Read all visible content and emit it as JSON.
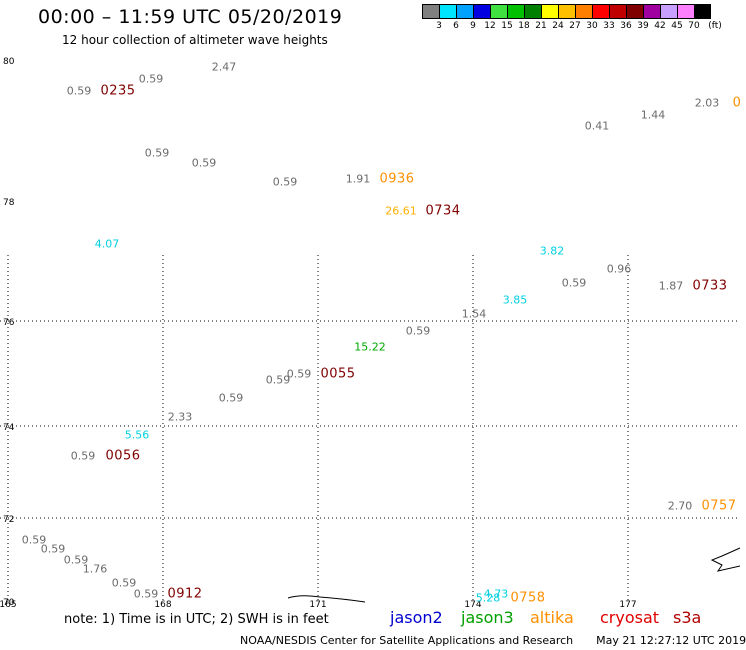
{
  "header": {
    "title": "00:00 – 11:59 UTC 05/20/2019",
    "subtitle": "12 hour collection of altimeter wave heights"
  },
  "legend": {
    "unit": "(ft)",
    "items": [
      {
        "label": "3",
        "color": "#808080"
      },
      {
        "label": "6",
        "color": "#00e5ff"
      },
      {
        "label": "9",
        "color": "#00a2ff"
      },
      {
        "label": "12",
        "color": "#0000e0"
      },
      {
        "label": "15",
        "color": "#40e040"
      },
      {
        "label": "18",
        "color": "#00c000"
      },
      {
        "label": "21",
        "color": "#008000"
      },
      {
        "label": "24",
        "color": "#ffff00"
      },
      {
        "label": "27",
        "color": "#ffc000"
      },
      {
        "label": "30",
        "color": "#ff8000"
      },
      {
        "label": "33",
        "color": "#ff0000"
      },
      {
        "label": "36",
        "color": "#c00000"
      },
      {
        "label": "39",
        "color": "#800000"
      },
      {
        "label": "42",
        "color": "#a000a0"
      },
      {
        "label": "45",
        "color": "#c8a0ff"
      },
      {
        "label": "70",
        "color": "#ff80ff"
      },
      {
        "label": "",
        "color": "#000000"
      }
    ]
  },
  "axes": {
    "lat_labels": [
      "80",
      "78",
      "76",
      "74",
      "72",
      "70"
    ],
    "lon_labels": [
      "165",
      "168",
      "171",
      "174",
      "177"
    ]
  },
  "observations": [
    {
      "value": "0.59",
      "color": "#6b6b6b"
    },
    {
      "value": "0.59",
      "color": "#6b6b6b"
    },
    {
      "value": "2.47",
      "color": "#6b6b6b"
    },
    {
      "value": "0.59",
      "color": "#6b6b6b"
    },
    {
      "value": "0.59",
      "color": "#6b6b6b"
    },
    {
      "value": "0.59",
      "color": "#6b6b6b"
    },
    {
      "value": "1.91",
      "color": "#6b6b6b"
    },
    {
      "value": "26.61",
      "color": "#ffb000"
    },
    {
      "value": "2.03",
      "color": "#6b6b6b"
    },
    {
      "value": "1.44",
      "color": "#6b6b6b"
    },
    {
      "value": "0.41",
      "color": "#6b6b6b"
    },
    {
      "value": "4.07",
      "color": "#00d0e0"
    },
    {
      "value": "3.82",
      "color": "#00d0e0"
    },
    {
      "value": "0.96",
      "color": "#6b6b6b"
    },
    {
      "value": "0.59",
      "color": "#6b6b6b"
    },
    {
      "value": "1.87",
      "color": "#6b6b6b"
    },
    {
      "value": "3.85",
      "color": "#00d0e0"
    },
    {
      "value": "1.54",
      "color": "#6b6b6b"
    },
    {
      "value": "0.59",
      "color": "#6b6b6b"
    },
    {
      "value": "15.22",
      "color": "#00a800"
    },
    {
      "value": "0.59",
      "color": "#6b6b6b"
    },
    {
      "value": "0.59",
      "color": "#6b6b6b"
    },
    {
      "value": "0.59",
      "color": "#6b6b6b"
    },
    {
      "value": "2.33",
      "color": "#6b6b6b"
    },
    {
      "value": "5.56",
      "color": "#00d0e0"
    },
    {
      "value": "0.59",
      "color": "#6b6b6b"
    },
    {
      "value": "2.70",
      "color": "#6b6b6b"
    },
    {
      "value": "0.59",
      "color": "#6b6b6b"
    },
    {
      "value": "0.59",
      "color": "#6b6b6b"
    },
    {
      "value": "0.59",
      "color": "#6b6b6b"
    },
    {
      "value": "1.76",
      "color": "#6b6b6b"
    },
    {
      "value": "0.59",
      "color": "#6b6b6b"
    },
    {
      "value": "0.59",
      "color": "#6b6b6b"
    },
    {
      "value": "5.28",
      "color": "#00d0e0"
    },
    {
      "value": "4.73",
      "color": "#00d0e0"
    }
  ],
  "pass_times": [
    {
      "time": "0235",
      "color": "#800000"
    },
    {
      "time": "0936",
      "color": "#ff9000"
    },
    {
      "time": "0734",
      "color": "#800000"
    },
    {
      "time": "0",
      "color": "#ff9000"
    },
    {
      "time": "0733",
      "color": "#800000"
    },
    {
      "time": "0055",
      "color": "#800000"
    },
    {
      "time": "0056",
      "color": "#800000"
    },
    {
      "time": "0757",
      "color": "#ff9000"
    },
    {
      "time": "0912",
      "color": "#800000"
    },
    {
      "time": "0758",
      "color": "#ff9000"
    }
  ],
  "footer": {
    "note": "note:  1) Time is in UTC;  2) SWH is in feet",
    "satellites": [
      {
        "name": "jason2",
        "color": "#0000d0"
      },
      {
        "name": "jason3",
        "color": "#00a000"
      },
      {
        "name": "altika",
        "color": "#ff9000"
      },
      {
        "name": "cryosat",
        "color": "#e00000"
      },
      {
        "name": "s3a",
        "color": "#b00000"
      }
    ],
    "credit": "NOAA/NESDIS Center for Satellite Applications and Research",
    "timestamp": "May 21 12:27:12 UTC 2019"
  }
}
